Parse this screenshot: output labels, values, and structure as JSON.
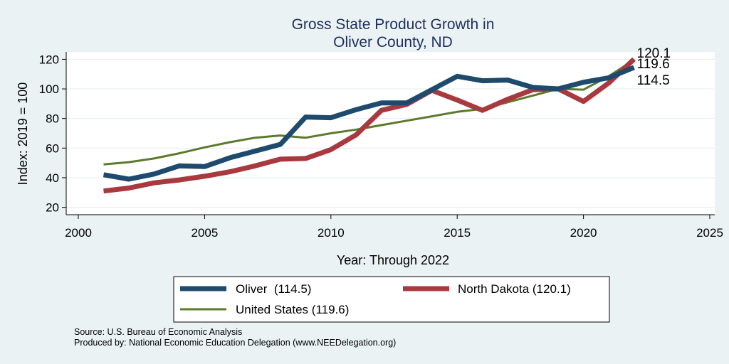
{
  "chart_data": {
    "type": "line",
    "title": "Gross State Product Growth in",
    "subtitle": "Oliver County, ND",
    "xlabel": "Year: Through 2022",
    "ylabel": "Index: 2019 = 100",
    "xlim": [
      2000,
      2025
    ],
    "ylim": [
      15,
      125
    ],
    "xticks": [
      2000,
      2005,
      2010,
      2015,
      2020,
      2025
    ],
    "yticks": [
      20,
      40,
      60,
      80,
      100,
      120
    ],
    "x": [
      2001,
      2002,
      2003,
      2004,
      2005,
      2006,
      2007,
      2008,
      2009,
      2010,
      2011,
      2012,
      2013,
      2014,
      2015,
      2016,
      2017,
      2018,
      2019,
      2020,
      2021,
      2022
    ],
    "series": [
      {
        "name": "United States",
        "legend": "United States (119.6)",
        "color": "#5b7a2e",
        "values": [
          49,
          50.5,
          53,
          56.5,
          60.5,
          64,
          67,
          68.5,
          67,
          70,
          72.5,
          75.5,
          78.5,
          81.5,
          84.5,
          86.5,
          91,
          95.5,
          100,
          99.5,
          108.5,
          119.6
        ],
        "end_label": "119.6"
      },
      {
        "name": "North Dakota",
        "legend": "North Dakota (120.1)",
        "color": "#a83a3f",
        "values": [
          31,
          33,
          36.5,
          38.5,
          41,
          44,
          48,
          52.5,
          53,
          59,
          69,
          85.5,
          89.5,
          99,
          92.5,
          85.5,
          93,
          99.5,
          100,
          91.5,
          104,
          120.1
        ],
        "end_label": "120.1"
      },
      {
        "name": "Oliver",
        "legend": "Oliver  (114.5)",
        "color": "#1e4a6e",
        "values": [
          42,
          39,
          42.5,
          48,
          47.5,
          53.5,
          58,
          62.5,
          81,
          80.5,
          86,
          90.5,
          90.5,
          99.5,
          108.5,
          105.5,
          106,
          101,
          100,
          104.5,
          107.5,
          114.5
        ],
        "end_label": "114.5"
      }
    ],
    "legend_position": "bottom"
  },
  "notes": {
    "source": "Source: U.S. Bureau of Economic Analysis",
    "produced_by": "Produced by: National Economic Education Delegation (www.NEEDelegation.org)"
  }
}
